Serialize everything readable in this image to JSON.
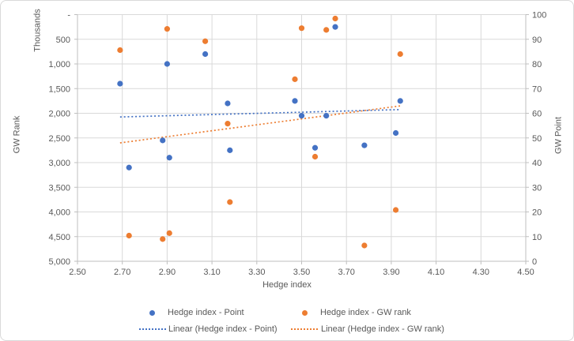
{
  "chart_data": {
    "type": "scatter",
    "title": "",
    "x_axis": {
      "title": "Hedge index",
      "min": 2.5,
      "max": 4.5,
      "step": 0.2,
      "tick_labels": [
        "2.50",
        "2.70",
        "2.90",
        "3.10",
        "3.30",
        "3.50",
        "3.70",
        "3.90",
        "4.10",
        "4.30",
        "4.50"
      ]
    },
    "left_axis": {
      "title": "GW Rank",
      "units": "Thousands",
      "min": 0,
      "max": 5000,
      "step": 500,
      "inverted": true,
      "tick_labels": [
        "-",
        "500",
        "1,000",
        "1,500",
        "2,000",
        "2,500",
        "3,000",
        "3,500",
        "4,000",
        "4,500",
        "5,000"
      ]
    },
    "right_axis": {
      "title": "GW Point",
      "min": 0,
      "max": 100,
      "step": 10,
      "tick_labels": [
        "0",
        "10",
        "20",
        "30",
        "40",
        "50",
        "60",
        "70",
        "80",
        "90",
        "100"
      ]
    },
    "series": [
      {
        "key": "point",
        "name": "Hedge index - Point",
        "color": "#4472C4",
        "axis": "right",
        "points": [
          [
            2.69,
            72
          ],
          [
            2.73,
            38
          ],
          [
            2.88,
            49
          ],
          [
            2.9,
            80
          ],
          [
            2.91,
            42
          ],
          [
            3.07,
            84
          ],
          [
            3.17,
            64
          ],
          [
            3.18,
            45
          ],
          [
            3.47,
            65
          ],
          [
            3.5,
            59
          ],
          [
            3.56,
            46
          ],
          [
            3.61,
            59
          ],
          [
            3.65,
            95
          ],
          [
            3.78,
            47
          ],
          [
            3.92,
            52
          ],
          [
            3.94,
            65
          ]
        ]
      },
      {
        "key": "gw-rank",
        "name": "Hedge index - GW rank",
        "color": "#ED7D31",
        "axis": "left",
        "points": [
          [
            2.69,
            720
          ],
          [
            2.73,
            4480
          ],
          [
            2.88,
            4550
          ],
          [
            2.9,
            290
          ],
          [
            2.91,
            4430
          ],
          [
            3.07,
            540
          ],
          [
            3.17,
            2210
          ],
          [
            3.18,
            3800
          ],
          [
            3.47,
            1310
          ],
          [
            3.5,
            275
          ],
          [
            3.56,
            2880
          ],
          [
            3.61,
            310
          ],
          [
            3.65,
            80
          ],
          [
            3.78,
            4680
          ],
          [
            3.92,
            3960
          ],
          [
            3.94,
            800
          ]
        ]
      }
    ],
    "trendlines": [
      {
        "key": "linear-point",
        "name": "Linear (Hedge index - Point)",
        "color": "#4472C4",
        "axis": "right",
        "start": [
          2.69,
          58.5
        ],
        "end": [
          3.94,
          61.5
        ]
      },
      {
        "key": "linear-gw-rank",
        "name": "Linear (Hedge index - GW rank)",
        "color": "#ED7D31",
        "axis": "left",
        "start": [
          2.69,
          2600
        ],
        "end": [
          3.94,
          1850
        ]
      }
    ],
    "legend_position": "bottom",
    "grid": true,
    "colors": {
      "gridline": "#d9d9d9",
      "axis_line": "#bfbfbf",
      "text": "#595959",
      "background": "#ffffff",
      "border": "#d9d9d9"
    }
  }
}
